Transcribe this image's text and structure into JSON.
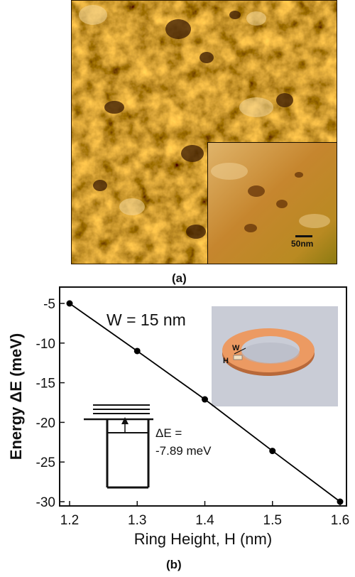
{
  "panel_a": {
    "label": "(a)",
    "scale_label": "50nm"
  },
  "panel_b": {
    "label": "(b)"
  },
  "chart_data": {
    "type": "line",
    "title": "",
    "xlabel": "Ring Height, H (nm)",
    "ylabel": "Energy ΔE (meV)",
    "xlim": [
      1.2,
      1.6
    ],
    "ylim": [
      -30,
      -5
    ],
    "xticks": [
      1.2,
      1.3,
      1.4,
      1.5,
      1.6
    ],
    "yticks": [
      -5,
      -10,
      -15,
      -20,
      -25,
      -30
    ],
    "xtick_labels": [
      "1.2",
      "1.3",
      "1.4",
      "1.5",
      "1.6"
    ],
    "ytick_labels": [
      "-5",
      "-10",
      "-15",
      "-20",
      "-25",
      "-30"
    ],
    "x": [
      1.2,
      1.3,
      1.4,
      1.5,
      1.6
    ],
    "y": [
      -5.0,
      -11.0,
      -17.1,
      -23.6,
      -30.0
    ],
    "series_color": "#000000",
    "annotations": {
      "width_label": "W = 15 nm",
      "delta_label_line1": "ΔE =",
      "delta_label_line2": "-7.89 meV",
      "ring_w_label": "W",
      "ring_h_label": "H"
    },
    "grid": false
  }
}
